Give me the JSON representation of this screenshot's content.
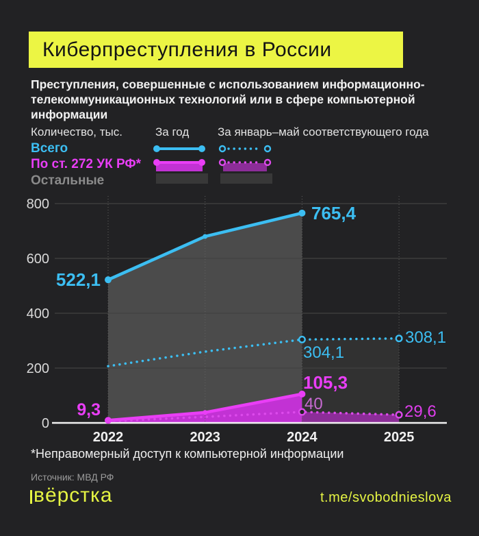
{
  "colors": {
    "background": "#222224",
    "accent_yellow": "#ecf544",
    "cyan": "#3cbef2",
    "magenta": "#e93ef6",
    "gray": "#8b8b8b"
  },
  "header": {
    "title": "Киберпреступления в России",
    "subtitle_lines": [
      "Преступления, совершенные с использованием информационно-",
      "телекоммуникационных технологий или в сфере компьютерной",
      "информации"
    ]
  },
  "legend": {
    "measure_label": "Количество, тыс.",
    "col_year": "За год",
    "col_janmay": "За январь–май соответствующего года",
    "rows": [
      {
        "label": "Всего",
        "color": "#3cbef2"
      },
      {
        "label": "По ст. 272 УК РФ*",
        "color": "#e93ef6"
      },
      {
        "label": "Остальные",
        "color": "#8b8b8b"
      }
    ]
  },
  "chart_data": {
    "type": "line",
    "title": "Киберпреступления в России",
    "ylabel": "Количество, тыс.",
    "x": [
      2022,
      2023,
      2024,
      2025
    ],
    "ylim": [
      0,
      800
    ],
    "yticks": [
      0,
      200,
      400,
      600,
      800
    ],
    "grid": true,
    "series": [
      {
        "name": "Всего — за год",
        "style": "solid",
        "color": "#3cbef2",
        "values": [
          522.1,
          680,
          765.4,
          null
        ]
      },
      {
        "name": "Всего — за январь–май",
        "style": "dotted",
        "color": "#3cbef2",
        "values": [
          207,
          260,
          304.1,
          308.1
        ],
        "open_markers": [
          2,
          3
        ]
      },
      {
        "name": "По ст. 272 УК РФ — за год",
        "style": "solid",
        "color": "#e93ef6",
        "values": [
          9.3,
          38,
          105.3,
          null
        ]
      },
      {
        "name": "По ст. 272 УК РФ — за январь–май",
        "style": "dotted",
        "color": "#dd4aec",
        "values": [
          6,
          22,
          40,
          29.6
        ],
        "open_markers": [
          2,
          3
        ]
      }
    ],
    "areas": [
      {
        "series": 0,
        "from": 0,
        "to": 2,
        "color": "#4b4b4b"
      },
      {
        "series": 1,
        "from": 2,
        "to": 3,
        "color": "#313131"
      },
      {
        "series": 2,
        "from": 0,
        "to": 2,
        "color": "#c232d4"
      },
      {
        "series": 3,
        "from": 2,
        "to": 3,
        "color": "#8c2d98"
      }
    ],
    "labels": {
      "total_year_2022": "522,1",
      "total_year_2024": "765,4",
      "total_janmay_2024": "304,1",
      "total_janmay_2025": "308,1",
      "art272_year_2022": "9,3",
      "art272_year_2024": "105,3",
      "art272_janmay_2024": "40",
      "art272_janmay_2025": "29,6"
    }
  },
  "footer": {
    "footnote": "*Неправомерный доступ к компьютерной информации",
    "source": "Источник: МВД РФ",
    "logo": "вёрстка",
    "telegram": "t.me/svobodnieslova"
  }
}
